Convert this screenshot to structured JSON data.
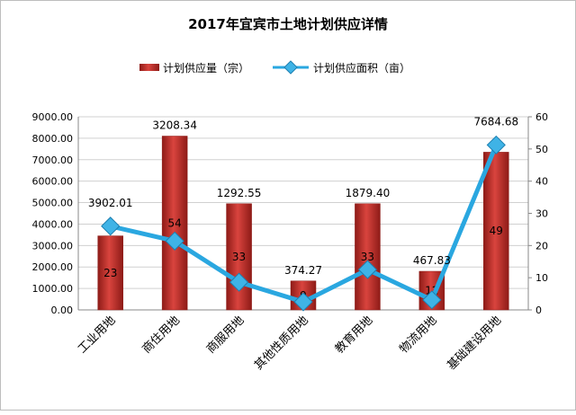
{
  "chart_data": {
    "type": "bar+line",
    "title": "2017年宜宾市土地计划供应详情",
    "categories": [
      "工业用地",
      "商住用地",
      "商服用地",
      "其他性质用地",
      "教育用地",
      "物流用地",
      "基础建设用地"
    ],
    "series": [
      {
        "name": "计划供应量（宗）",
        "type": "bar",
        "axis": "right",
        "values": [
          23,
          54,
          33,
          9,
          33,
          12,
          49
        ],
        "labels": [
          "23",
          "54",
          "33",
          "9",
          "33",
          "12",
          "49"
        ]
      },
      {
        "name": "计划供应面积（亩）",
        "type": "line",
        "axis": "left",
        "values": [
          3902.01,
          3208.34,
          1292.55,
          374.27,
          1879.4,
          467.83,
          7684.68
        ],
        "labels": [
          "3902.01",
          "3208.34",
          "1292.55",
          "374.27",
          "1879.40",
          "467.83",
          "7684.68"
        ]
      }
    ],
    "y_left": {
      "min": 0,
      "max": 9000,
      "ticks": [
        "0.00",
        "1000.00",
        "2000.00",
        "3000.00",
        "4000.00",
        "5000.00",
        "6000.00",
        "7000.00",
        "8000.00",
        "9000.00"
      ]
    },
    "y_right": {
      "min": 0,
      "max": 60,
      "ticks": [
        "0",
        "10",
        "20",
        "30",
        "40",
        "50",
        "60"
      ]
    },
    "legend_position": "top",
    "colors": {
      "bar": "#c0302b",
      "bar_dark": "#8e1b17",
      "line": "#2aa7e0",
      "marker": "#3fb3e6",
      "grid": "#d0d0d0",
      "axis": "#888888"
    }
  }
}
